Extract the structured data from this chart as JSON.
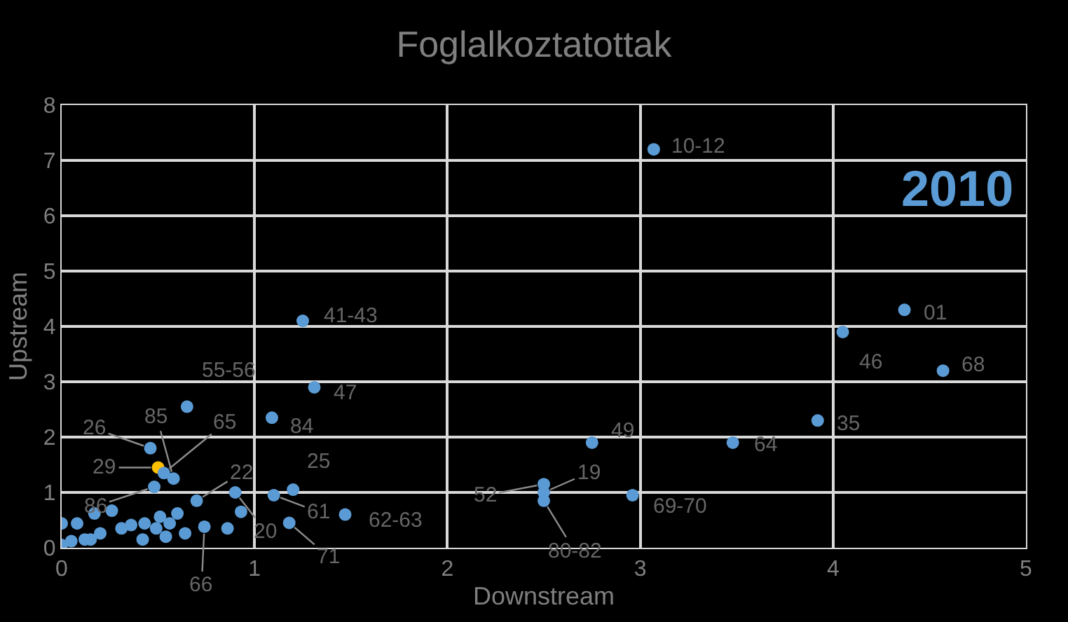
{
  "chart_data": {
    "type": "scatter",
    "title": "Foglalkoztatottak",
    "xlabel": "Downstream",
    "ylabel": "Upstream",
    "xlim": [
      0,
      5
    ],
    "xticks": [
      0,
      1,
      2,
      3,
      4,
      5
    ],
    "ylim": [
      0,
      8
    ],
    "yticks": [
      0,
      1,
      2,
      3,
      4,
      5,
      6,
      7,
      8
    ],
    "grid": true,
    "marker": "circle",
    "annotations": [
      "2010",
      {
        "text": "10-12",
        "x": 3.07,
        "y": 7.2
      },
      {
        "text": "41-43",
        "x": 1.25,
        "y": 4.1
      },
      {
        "text": "01",
        "x": 4.37,
        "y": 4.3
      },
      {
        "text": "46",
        "x": 4.05,
        "y": 3.9
      },
      {
        "text": "68",
        "x": 4.57,
        "y": 3.2
      },
      {
        "text": "35",
        "x": 3.92,
        "y": 2.3
      },
      {
        "text": "64",
        "x": 3.48,
        "y": 1.9
      },
      {
        "text": "49",
        "x": 2.75,
        "y": 1.9
      },
      {
        "text": "69-70",
        "x": 2.96,
        "y": 0.95
      },
      {
        "text": "52",
        "x": 2.5,
        "y": 1.15
      },
      {
        "text": "19",
        "x": 2.5,
        "y": 1.0
      },
      {
        "text": "80-82",
        "x": 2.5,
        "y": 0.85
      },
      {
        "text": "47",
        "x": 1.31,
        "y": 2.9
      },
      {
        "text": "84",
        "x": 1.09,
        "y": 2.35
      },
      {
        "text": "55-56",
        "x": 0.65,
        "y": 2.55
      },
      {
        "text": "26",
        "x": 0.46,
        "y": 1.8
      },
      {
        "text": "29",
        "x": 0.5,
        "y": 1.45
      },
      {
        "text": "85",
        "x": 0.58,
        "y": 1.25
      },
      {
        "text": "65",
        "x": 0.53,
        "y": 1.35
      },
      {
        "text": "86",
        "x": 0.48,
        "y": 1.1
      },
      {
        "text": "22",
        "x": 0.7,
        "y": 0.85
      },
      {
        "text": "25",
        "x": 1.2,
        "y": 1.05
      },
      {
        "text": "61",
        "x": 1.1,
        "y": 0.95
      },
      {
        "text": "20",
        "x": 0.9,
        "y": 1.0
      },
      {
        "text": "71",
        "x": 1.18,
        "y": 0.45
      },
      {
        "text": "62-63",
        "x": 1.47,
        "y": 0.6
      },
      {
        "text": "66",
        "x": 0.74,
        "y": 0.38
      }
    ],
    "series": [
      {
        "x": [
          3.07,
          1.25,
          4.37,
          4.05,
          4.57,
          3.92,
          3.48,
          2.75,
          2.96,
          2.5,
          2.5,
          2.5,
          1.31,
          1.09,
          0.65,
          0.46,
          0.5,
          0.58,
          0.53,
          0.48,
          0.7,
          1.2,
          1.1,
          0.9,
          1.18,
          1.47,
          0.74,
          0,
          0,
          0.08,
          0.17,
          0.26,
          0.12,
          0.2,
          0.31,
          0.42,
          0.43,
          0.51,
          0.56,
          0.6,
          0.64,
          0.54,
          0.86,
          0.93,
          0.05,
          0.36,
          0.49,
          0.15
        ],
        "values": [
          7.2,
          4.1,
          4.3,
          3.9,
          3.2,
          2.3,
          1.9,
          1.9,
          0.95,
          1.15,
          1.0,
          0.85,
          2.9,
          2.35,
          2.55,
          1.8,
          1.45,
          1.25,
          1.35,
          1.1,
          0.85,
          1.05,
          0.95,
          1.0,
          0.45,
          0.6,
          0.38,
          0.44,
          0.05,
          0.44,
          0.62,
          0.67,
          0.15,
          0.26,
          0.35,
          0.15,
          0.44,
          0.56,
          0.44,
          0.62,
          0.26,
          0.2,
          0.35,
          0.65,
          0.12,
          0.41,
          0.35,
          0.15
        ],
        "colors": [
          "#5b9bd5",
          "#5b9bd5",
          "#5b9bd5",
          "#5b9bd5",
          "#5b9bd5",
          "#5b9bd5",
          "#5b9bd5",
          "#5b9bd5",
          "#5b9bd5",
          "#5b9bd5",
          "#5b9bd5",
          "#5b9bd5",
          "#5b9bd5",
          "#5b9bd5",
          "#5b9bd5",
          "#5b9bd5",
          "#ffc000",
          "#5b9bd5",
          "#5b9bd5",
          "#5b9bd5",
          "#5b9bd5",
          "#5b9bd5",
          "#5b9bd5",
          "#5b9bd5",
          "#5b9bd5",
          "#5b9bd5",
          "#5b9bd5",
          "#5b9bd5",
          "#5b9bd5",
          "#5b9bd5",
          "#5b9bd5",
          "#5b9bd5",
          "#5b9bd5",
          "#5b9bd5",
          "#5b9bd5",
          "#5b9bd5",
          "#5b9bd5",
          "#5b9bd5",
          "#5b9bd5",
          "#5b9bd5",
          "#5b9bd5",
          "#5b9bd5",
          "#5b9bd5",
          "#5b9bd5",
          "#5b9bd5",
          "#5b9bd5",
          "#5b9bd5",
          "#5b9bd5"
        ]
      }
    ]
  }
}
